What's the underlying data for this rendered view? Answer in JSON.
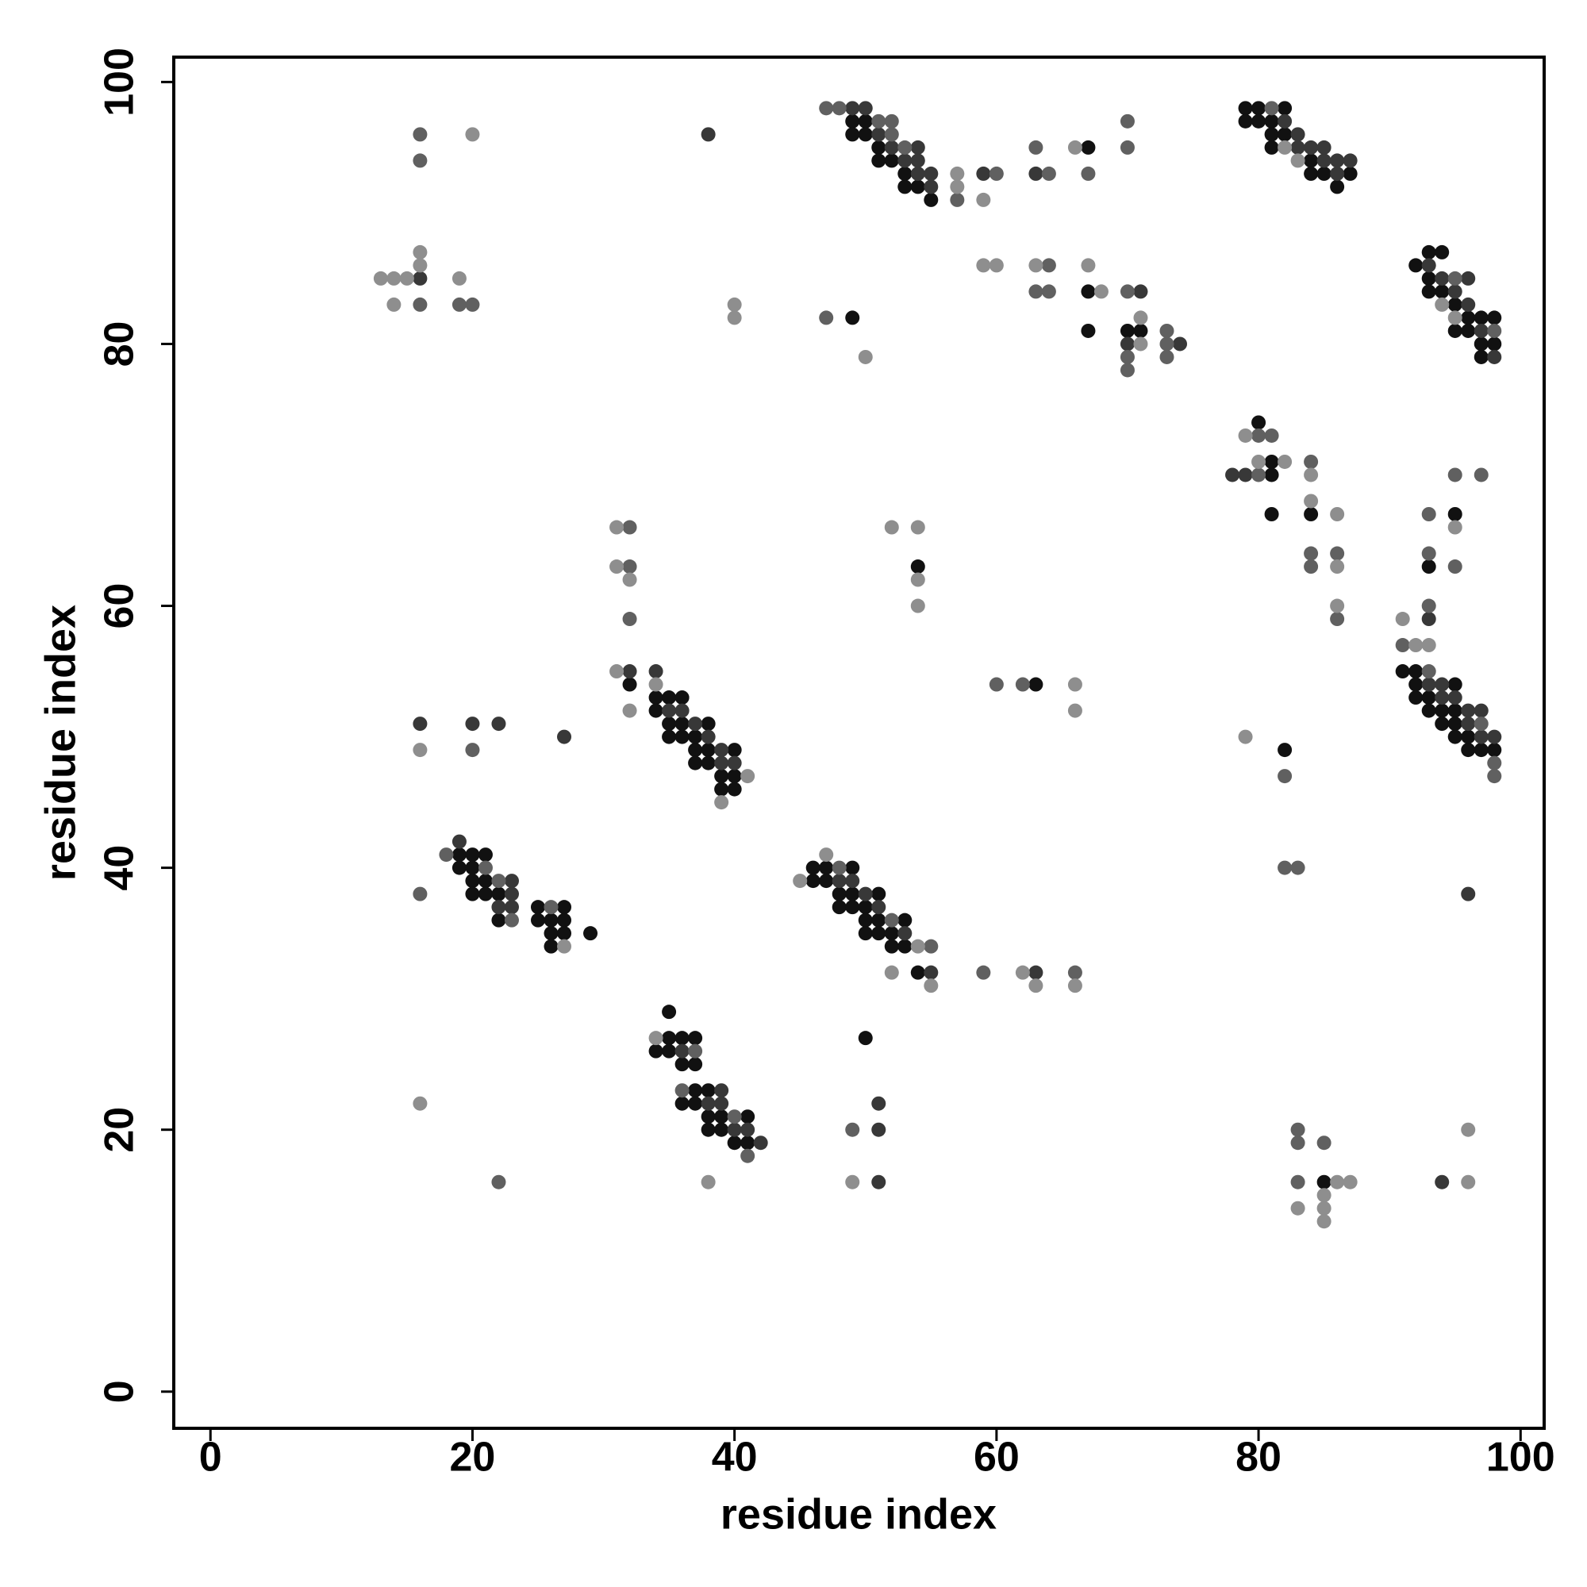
{
  "chart_data": {
    "type": "scatter",
    "xlabel": "residue index",
    "ylabel": "residue index",
    "xlim": [
      -2.8,
      101.8
    ],
    "ylim": [
      -2.8,
      101.9
    ],
    "xticks": [
      0,
      20,
      40,
      60,
      80,
      100
    ],
    "yticks": [
      0,
      20,
      40,
      60,
      80,
      100
    ],
    "grid": false,
    "series": [
      {
        "color": "#111111",
        "x": [
          49,
          49,
          50,
          49,
          50,
          51,
          51,
          52,
          53,
          53,
          54,
          55,
          67,
          67,
          67,
          70,
          71,
          79,
          80,
          82,
          79,
          80,
          81,
          81,
          82,
          81,
          84,
          84,
          85,
          87,
          86,
          92,
          93,
          94,
          93,
          93,
          94,
          95,
          96,
          97,
          98,
          95,
          96,
          97,
          98,
          97,
          80,
          81,
          81,
          81,
          84,
          93,
          95,
          91,
          92,
          92,
          95,
          92,
          93,
          93,
          94,
          95,
          94,
          95,
          95,
          96,
          96,
          97,
          98,
          82,
          32,
          34,
          35,
          36,
          34,
          35,
          36,
          38,
          35,
          36,
          37,
          37,
          38,
          40,
          37,
          38,
          39,
          40,
          39,
          40,
          54,
          63,
          19,
          20,
          21,
          19,
          20,
          20,
          21,
          20,
          21,
          22,
          22,
          25,
          27,
          25,
          26,
          27,
          26,
          27,
          26,
          29,
          46,
          47,
          49,
          46,
          47,
          48,
          49,
          51,
          48,
          49,
          50,
          50,
          51,
          53,
          50,
          51,
          52,
          52,
          53,
          54,
          35,
          35,
          36,
          37,
          34,
          35,
          36,
          37,
          37,
          38,
          36,
          37,
          38,
          39,
          41,
          38,
          39,
          40,
          41,
          50,
          85
        ],
        "y": [
          82,
          97,
          97,
          96,
          96,
          95,
          94,
          94,
          93,
          92,
          92,
          91,
          95,
          84,
          81,
          81,
          81,
          98,
          98,
          98,
          97,
          97,
          97,
          96,
          96,
          95,
          94,
          93,
          93,
          93,
          92,
          86,
          87,
          87,
          85,
          84,
          84,
          83,
          82,
          82,
          82,
          81,
          81,
          80,
          80,
          79,
          74,
          71,
          70,
          67,
          67,
          63,
          67,
          55,
          55,
          54,
          54,
          53,
          53,
          52,
          52,
          52,
          51,
          51,
          50,
          50,
          49,
          49,
          49,
          49,
          54,
          53,
          53,
          53,
          52,
          51,
          51,
          51,
          50,
          50,
          50,
          49,
          49,
          49,
          48,
          48,
          47,
          47,
          46,
          46,
          63,
          54,
          41,
          41,
          41,
          40,
          40,
          39,
          39,
          38,
          38,
          38,
          36,
          37,
          37,
          36,
          36,
          36,
          35,
          35,
          34,
          35,
          40,
          40,
          40,
          39,
          39,
          38,
          38,
          38,
          37,
          37,
          37,
          36,
          36,
          36,
          35,
          35,
          35,
          34,
          34,
          32,
          29,
          27,
          27,
          27,
          26,
          26,
          25,
          25,
          23,
          23,
          22,
          22,
          21,
          21,
          21,
          20,
          20,
          19,
          19,
          27,
          16
        ]
      },
      {
        "color": "#383838",
        "x": [
          38,
          16,
          49,
          50,
          51,
          52,
          54,
          53,
          54,
          54,
          55,
          55,
          59,
          63,
          71,
          70,
          74,
          82,
          83,
          83,
          84,
          85,
          85,
          86,
          87,
          86,
          93,
          94,
          95,
          96,
          96,
          97,
          98,
          79,
          78,
          93,
          93,
          94,
          94,
          95,
          96,
          97,
          96,
          97,
          98,
          96,
          32,
          34,
          35,
          36,
          37,
          38,
          39,
          39,
          40,
          16,
          20,
          22,
          27,
          19,
          23,
          23,
          22,
          23,
          48,
          49,
          50,
          51,
          53,
          55,
          63,
          36,
          39,
          38,
          39,
          40,
          41,
          42,
          51,
          51,
          51,
          94
        ],
        "y": [
          96,
          85,
          98,
          98,
          96,
          95,
          95,
          94,
          94,
          93,
          93,
          92,
          93,
          93,
          84,
          80,
          80,
          97,
          96,
          95,
          95,
          95,
          94,
          94,
          94,
          93,
          86,
          85,
          84,
          85,
          83,
          81,
          79,
          70,
          70,
          59,
          54,
          54,
          53,
          53,
          52,
          52,
          51,
          50,
          50,
          38,
          55,
          55,
          52,
          52,
          51,
          50,
          49,
          48,
          48,
          51,
          51,
          51,
          50,
          42,
          39,
          38,
          37,
          37,
          39,
          39,
          38,
          37,
          35,
          32,
          32,
          26,
          23,
          22,
          22,
          20,
          20,
          19,
          22,
          20,
          16,
          16
        ]
      },
      {
        "color": "#606060",
        "x": [
          16,
          16,
          16,
          19,
          20,
          47,
          47,
          48,
          51,
          52,
          52,
          53,
          57,
          60,
          63,
          64,
          67,
          70,
          70,
          64,
          63,
          64,
          70,
          70,
          70,
          73,
          73,
          73,
          81,
          95,
          98,
          80,
          80,
          81,
          84,
          84,
          84,
          86,
          86,
          93,
          93,
          95,
          97,
          95,
          93,
          91,
          93,
          97,
          98,
          98,
          82,
          82,
          83,
          32,
          32,
          32,
          60,
          62,
          20,
          18,
          21,
          22,
          23,
          26,
          16,
          48,
          52,
          55,
          59,
          66,
          37,
          36,
          40,
          41,
          22,
          49,
          83,
          83,
          85,
          83
        ],
        "y": [
          96,
          94,
          83,
          83,
          83,
          82,
          98,
          98,
          97,
          97,
          96,
          95,
          91,
          93,
          95,
          93,
          93,
          97,
          95,
          86,
          84,
          84,
          84,
          79,
          78,
          81,
          80,
          79,
          98,
          85,
          81,
          70,
          73,
          73,
          71,
          64,
          63,
          64,
          59,
          67,
          64,
          70,
          70,
          63,
          60,
          57,
          55,
          51,
          48,
          47,
          47,
          40,
          40,
          66,
          63,
          59,
          54,
          54,
          49,
          41,
          40,
          39,
          36,
          37,
          38,
          40,
          36,
          34,
          32,
          32,
          26,
          23,
          21,
          18,
          16,
          20,
          20,
          19,
          19,
          16
        ]
      },
      {
        "color": "#8e8e8e",
        "x": [
          20,
          13,
          14,
          15,
          16,
          16,
          14,
          19,
          40,
          40,
          50,
          57,
          57,
          59,
          66,
          59,
          60,
          63,
          67,
          68,
          71,
          71,
          82,
          83,
          94,
          95,
          79,
          80,
          82,
          84,
          84,
          86,
          86,
          86,
          95,
          91,
          92,
          93,
          79,
          31,
          31,
          32,
          31,
          32,
          34,
          41,
          39,
          52,
          54,
          54,
          54,
          66,
          66,
          16,
          27,
          45,
          47,
          54,
          52,
          55,
          62,
          63,
          66,
          34,
          16,
          38,
          49,
          86,
          87,
          85,
          83,
          85,
          85,
          96,
          96
        ],
        "y": [
          96,
          85,
          85,
          85,
          87,
          86,
          83,
          85,
          83,
          82,
          79,
          93,
          92,
          91,
          95,
          86,
          86,
          86,
          86,
          84,
          82,
          80,
          95,
          94,
          83,
          82,
          73,
          71,
          71,
          70,
          68,
          67,
          63,
          60,
          66,
          59,
          57,
          57,
          50,
          66,
          63,
          62,
          55,
          52,
          54,
          47,
          45,
          66,
          66,
          62,
          60,
          54,
          52,
          49,
          34,
          39,
          41,
          34,
          32,
          31,
          32,
          31,
          31,
          27,
          22,
          16,
          16,
          16,
          16,
          15,
          14,
          14,
          13,
          20,
          16
        ]
      }
    ]
  }
}
